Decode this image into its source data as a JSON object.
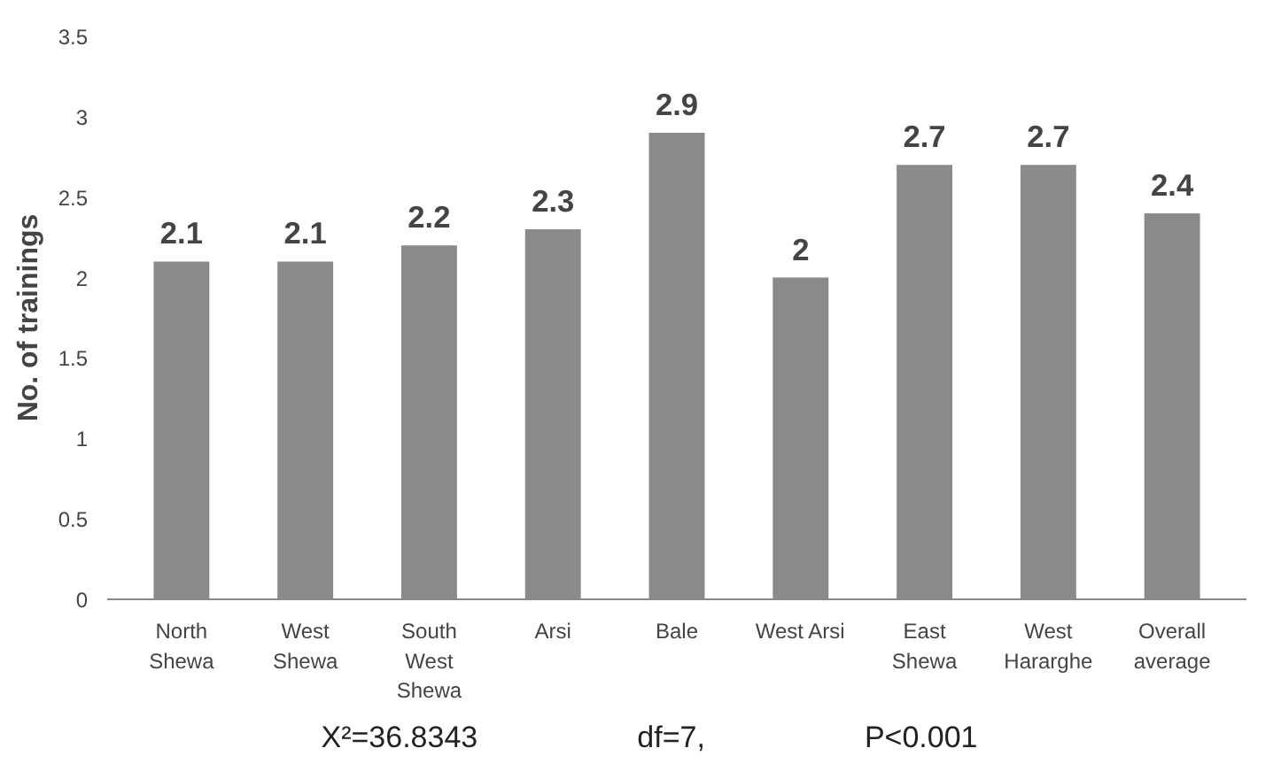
{
  "chart_data": {
    "type": "bar",
    "ylabel": "No. of trainings",
    "categories": [
      "North\nShewa",
      "West\nShewa",
      "South\nWest\nShewa",
      "Arsi",
      "Bale",
      "West Arsi",
      "East\nShewa",
      "West\nHararghe",
      "Overall\naverage"
    ],
    "values": [
      2.1,
      2.1,
      2.2,
      2.3,
      2.9,
      2,
      2.7,
      2.7,
      2.4
    ],
    "color": "#8a8a8a",
    "ylim": [
      0,
      3.5
    ],
    "yticks": [
      0,
      0.5,
      1,
      1.5,
      2,
      2.5,
      3,
      3.5
    ],
    "grid": false,
    "data_labels": true,
    "annotations": [
      "X²=36.8343",
      "df=7,",
      "P<0.001"
    ]
  }
}
